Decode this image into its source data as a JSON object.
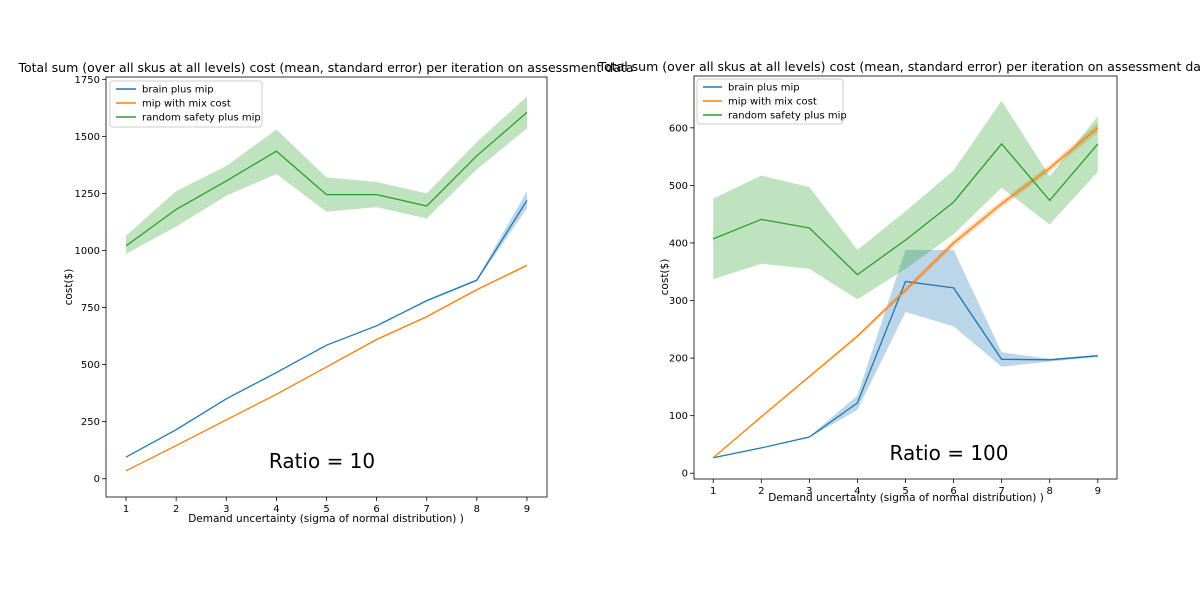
{
  "colors": {
    "brain": "#1f77b4",
    "mix": "#ff7f0e",
    "random": "#2ca02c"
  },
  "chart_data": [
    {
      "type": "line",
      "title": "Total sum (over all skus at all levels) cost (mean, standard error) per iteration on assessment data",
      "xlabel": "Demand uncertainty (sigma of normal distribution) )",
      "ylabel": "cost($)",
      "x": [
        1,
        2,
        3,
        4,
        5,
        6,
        7,
        8,
        9
      ],
      "xlim": [
        0.6,
        9.4
      ],
      "ylim": [
        -80,
        1760
      ],
      "yticks": [
        0,
        250,
        500,
        750,
        1000,
        1250,
        1500,
        1750
      ],
      "grid": false,
      "legend_position": "top-left",
      "annotation": "Ratio = 10",
      "series": [
        {
          "name": "brain plus mip",
          "color": "#1f77b4",
          "values": [
            95,
            215,
            350,
            465,
            585,
            670,
            780,
            870,
            1220
          ],
          "lower": [
            95,
            215,
            350,
            465,
            585,
            670,
            775,
            865,
            1185
          ],
          "upper": [
            95,
            215,
            350,
            465,
            585,
            670,
            785,
            875,
            1260
          ]
        },
        {
          "name": "mip with mix cost",
          "color": "#ff7f0e",
          "values": [
            35,
            145,
            258,
            370,
            490,
            610,
            710,
            828,
            935
          ],
          "lower": [
            33,
            142,
            255,
            367,
            487,
            606,
            706,
            824,
            930
          ],
          "upper": [
            37,
            148,
            261,
            373,
            493,
            614,
            714,
            832,
            940
          ]
        },
        {
          "name": "random safety plus mip",
          "color": "#2ca02c",
          "values": [
            1020,
            1180,
            1305,
            1435,
            1245,
            1245,
            1195,
            1415,
            1605
          ],
          "lower": [
            985,
            1105,
            1240,
            1335,
            1170,
            1190,
            1140,
            1355,
            1535
          ],
          "upper": [
            1065,
            1260,
            1370,
            1530,
            1320,
            1300,
            1250,
            1475,
            1675
          ]
        }
      ]
    },
    {
      "type": "line",
      "title": "Total sum (over all skus at all levels) cost (mean, standard error) per iteration on assessment data",
      "xlabel": "Demand uncertainty (sigma of normal distribution) )",
      "ylabel": "cost($)",
      "x": [
        1,
        2,
        3,
        4,
        5,
        6,
        7,
        8,
        9
      ],
      "xlim": [
        0.6,
        9.4
      ],
      "ylim": [
        -10,
        690
      ],
      "yticks": [
        0,
        100,
        200,
        300,
        400,
        500,
        600
      ],
      "grid": false,
      "legend_position": "top-left",
      "annotation": "Ratio = 100",
      "series": [
        {
          "name": "brain plus mip",
          "color": "#1f77b4",
          "values": [
            27,
            44,
            63,
            122,
            333,
            322,
            198,
            197,
            204
          ],
          "lower": [
            27,
            44,
            62,
            110,
            280,
            255,
            185,
            194,
            202
          ],
          "upper": [
            27,
            44,
            64,
            135,
            388,
            388,
            210,
            199,
            206
          ]
        },
        {
          "name": "mip with mix cost",
          "color": "#ff7f0e",
          "values": [
            27,
            98,
            168,
            238,
            318,
            400,
            468,
            530,
            600
          ],
          "lower": [
            26,
            96,
            166,
            235,
            313,
            394,
            462,
            524,
            592
          ],
          "upper": [
            28,
            100,
            170,
            241,
            323,
            406,
            474,
            536,
            608
          ]
        },
        {
          "name": "random safety plus mip",
          "color": "#2ca02c",
          "values": [
            407,
            441,
            426,
            345,
            405,
            471,
            572,
            474,
            572
          ],
          "lower": [
            337,
            364,
            355,
            302,
            355,
            415,
            496,
            432,
            524
          ],
          "upper": [
            477,
            517,
            497,
            388,
            455,
            526,
            647,
            516,
            620
          ]
        }
      ]
    }
  ]
}
